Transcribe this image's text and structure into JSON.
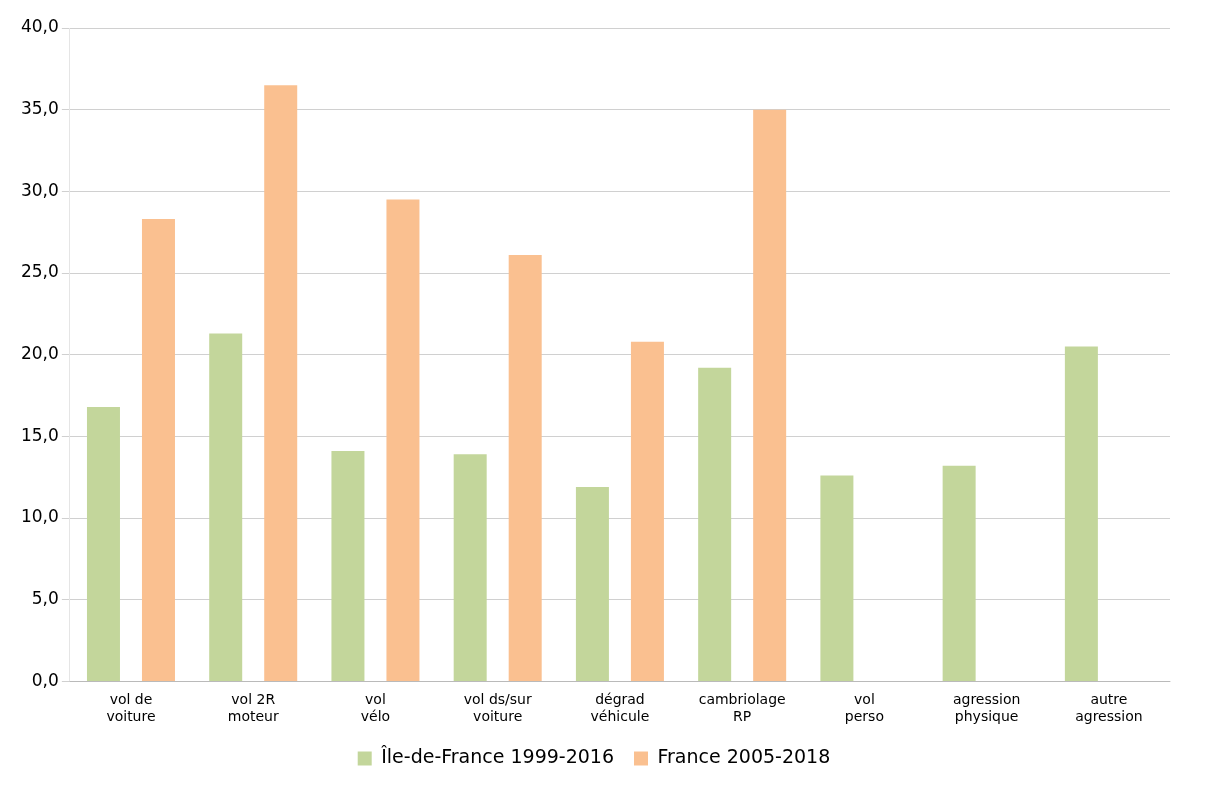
{
  "chart_data": {
    "type": "bar",
    "categories": [
      "vol de voiture",
      "vol 2R moteur",
      "vol vélo",
      "vol ds/sur voiture",
      "dégrad véhicule",
      "cambriolage RP",
      "vol perso",
      "agression physique",
      "autre agression"
    ],
    "series": [
      {
        "name": "Île-de-France 1999-2016",
        "color": "#c3d69b",
        "values": [
          16.8,
          21.3,
          14.1,
          13.9,
          11.9,
          19.2,
          12.6,
          13.2,
          20.5
        ]
      },
      {
        "name": "France 2005-2018",
        "color": "#fac090",
        "values": [
          28.3,
          36.5,
          29.5,
          26.1,
          20.8,
          35.0,
          null,
          null,
          null
        ]
      }
    ],
    "ylim": [
      0,
      40
    ],
    "yticks": [
      {
        "value": 0,
        "label": "0,0"
      },
      {
        "value": 5,
        "label": "5,0"
      },
      {
        "value": 10,
        "label": "10,0"
      },
      {
        "value": 15,
        "label": "15,0"
      },
      {
        "value": 20,
        "label": "20,0"
      },
      {
        "value": 25,
        "label": "25,0"
      },
      {
        "value": 30,
        "label": "30,0"
      },
      {
        "value": 35,
        "label": "35,0"
      },
      {
        "value": 40,
        "label": "40,0"
      }
    ],
    "grid": "y",
    "legend": "bottom"
  }
}
